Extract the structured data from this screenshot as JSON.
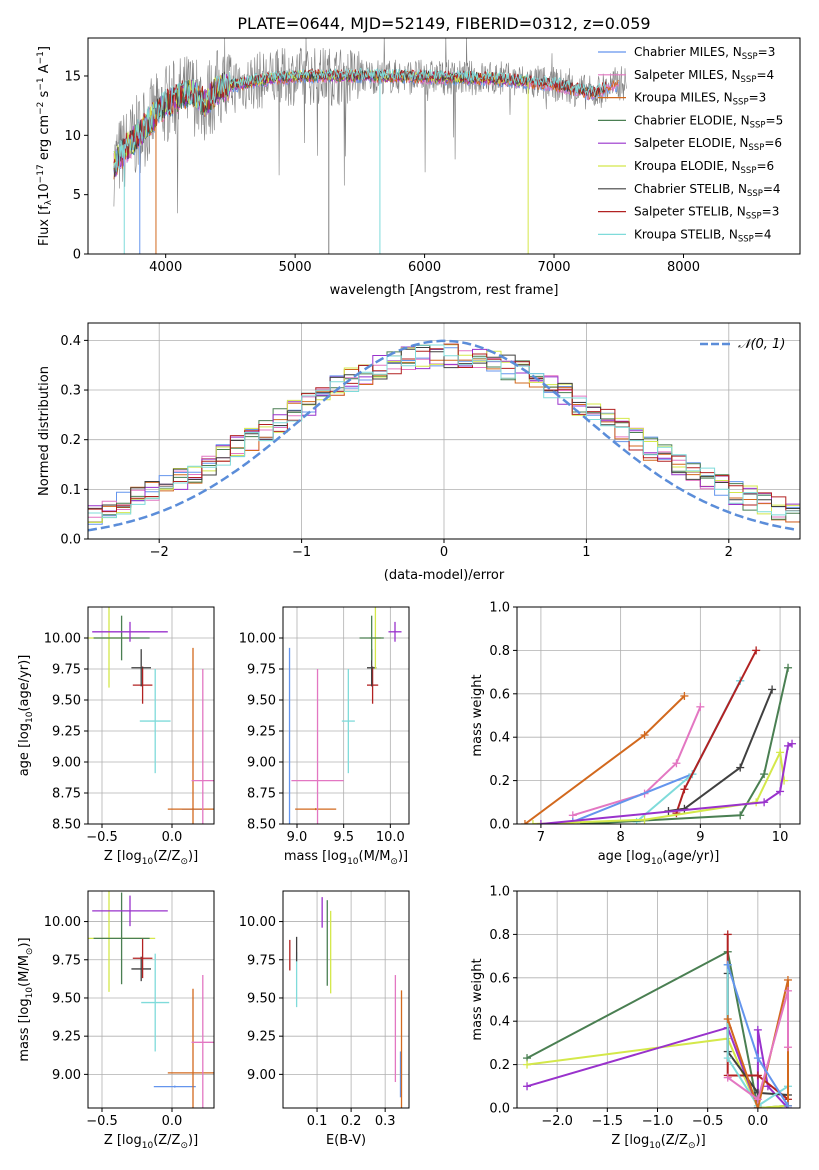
{
  "figure": {
    "title": "PLATE=0644, MJD=52149, FIBERID=0312, z=0.059"
  },
  "colors": {
    "Chabrier MILES": "#6495ed",
    "Salpeter MILES": "#e377c2",
    "Kroupa MILES": "#d2691e",
    "Chabrier ELODIE": "#4a7f52",
    "Salpeter ELODIE": "#9932cc",
    "Kroupa ELODIE": "#d4e84a",
    "Chabrier STELIB": "#404040",
    "Salpeter STELIB": "#b22222",
    "Kroupa STELIB": "#7fdbda",
    "data": "#808080",
    "gauss": "#5b8dd9"
  },
  "chart_data": [
    {
      "id": "spectrum",
      "type": "line",
      "title": "PLATE=0644, MJD=52149, FIBERID=0312, z=0.059",
      "xlabel": "wavelength [Angstrom, rest frame]",
      "ylabel": "Flux [f_λ10^-17 erg cm^-2 s^-1 A^-1]",
      "xlim": [
        3400,
        8900
      ],
      "ylim": [
        0,
        18.2
      ],
      "xticks": [
        4000,
        5000,
        6000,
        7000,
        8000
      ],
      "yticks": [
        0,
        5,
        10,
        15
      ],
      "grid": false,
      "legend_position": "upper right",
      "legend": [
        {
          "prefix": "Chabrier MILES, N",
          "sub": "SSP",
          "suffix": "=3"
        },
        {
          "prefix": "Salpeter MILES, N",
          "sub": "SSP",
          "suffix": "=4"
        },
        {
          "prefix": "Kroupa MILES, N",
          "sub": "SSP",
          "suffix": "=3"
        },
        {
          "prefix": "Chabrier ELODIE, N",
          "sub": "SSP",
          "suffix": "=5"
        },
        {
          "prefix": "Salpeter ELODIE, N",
          "sub": "SSP",
          "suffix": "=6"
        },
        {
          "prefix": "Kroupa ELODIE, N",
          "sub": "SSP",
          "suffix": "=6"
        },
        {
          "prefix": "Chabrier STELIB, N",
          "sub": "SSP",
          "suffix": "=4"
        },
        {
          "prefix": "Salpeter STELIB, N",
          "sub": "SSP",
          "suffix": "=3"
        },
        {
          "prefix": "Kroupa STELIB, N",
          "sub": "SSP",
          "suffix": "=4"
        }
      ],
      "continuum_x": [
        3600,
        3700,
        3800,
        3900,
        4000,
        4100,
        4200,
        4300,
        4400,
        4500,
        4700,
        5000,
        5500,
        6000,
        6500,
        7000,
        7300,
        7500,
        7800,
        8000,
        8300,
        8500,
        8800
      ],
      "continuum_y": [
        7.5,
        9.0,
        10.2,
        11.5,
        12.6,
        13.2,
        13.6,
        12.7,
        13.9,
        14.2,
        14.6,
        15.0,
        15.0,
        14.9,
        14.8,
        14.3,
        13.5,
        14.4,
        14.2,
        13.9,
        13.4,
        13.0,
        12.6
      ]
    },
    {
      "id": "residuals",
      "type": "histogram",
      "xlabel": "(data-model)/error",
      "ylabel": "Normed distribution",
      "xlim": [
        -2.5,
        2.5
      ],
      "ylim": [
        0,
        0.435
      ],
      "xticks": [
        -2,
        -1,
        0,
        1,
        2
      ],
      "yticks": [
        0.0,
        0.1,
        0.2,
        0.3,
        0.4
      ],
      "grid": true,
      "legend_position": "upper right",
      "gauss_label": "𝒩(0, 1)",
      "bin_width": 0.1
    },
    {
      "id": "age-vs-z",
      "type": "errorbar",
      "xlabel_parts": [
        "Z [log",
        "10",
        "(Z/Z",
        "⊙",
        ")]"
      ],
      "ylabel_parts": [
        "age  [log",
        "10",
        "(age/yr)]"
      ],
      "xlim": [
        -0.6,
        0.3
      ],
      "ylim": [
        8.5,
        10.25
      ],
      "xticks": [
        -0.5,
        0.0
      ],
      "yticks": [
        8.5,
        8.75,
        9.0,
        9.25,
        9.5,
        9.75,
        10.0
      ],
      "grid": true,
      "points": [
        {
          "model": "Chabrier MILES",
          "x": 0.15,
          "xerr": 0.08,
          "y": 8.62,
          "yerr": 0.0
        },
        {
          "model": "Kroupa MILES",
          "x": 0.15,
          "xerr": 0.18,
          "y": 8.62,
          "yerr": 1.3
        },
        {
          "model": "Salpeter MILES",
          "x": 0.22,
          "xerr": 0.08,
          "y": 8.85,
          "yerr": 0.9
        },
        {
          "model": "Kroupa STELIB",
          "x": -0.12,
          "xerr": 0.11,
          "y": 9.33,
          "yerr": 0.42
        },
        {
          "model": "Salpeter STELIB",
          "x": -0.21,
          "xerr": 0.07,
          "y": 9.62,
          "yerr": 0.15
        },
        {
          "model": "Chabrier STELIB",
          "x": -0.22,
          "xerr": 0.07,
          "y": 9.76,
          "yerr": 0.15
        },
        {
          "model": "Kroupa ELODIE",
          "x": -0.45,
          "xerr": 0.16,
          "y": 10.0,
          "yerr": 0.4
        },
        {
          "model": "Chabrier ELODIE",
          "x": -0.36,
          "xerr": 0.2,
          "y": 10.0,
          "yerr": 0.18
        },
        {
          "model": "Salpeter ELODIE",
          "x": -0.3,
          "xerr": 0.27,
          "y": 10.05,
          "yerr": 0.08
        }
      ]
    },
    {
      "id": "age-vs-mass",
      "type": "errorbar",
      "xlabel_parts": [
        "mass [log",
        "10",
        "(M/M",
        "⊙",
        ")]"
      ],
      "xlim": [
        8.85,
        10.2
      ],
      "ylim": [
        8.5,
        10.25
      ],
      "xticks": [
        9.0,
        9.5,
        10.0
      ],
      "yticks": [
        8.5,
        8.75,
        9.0,
        9.25,
        9.5,
        9.75,
        10.0
      ],
      "grid": true,
      "points": [
        {
          "model": "Chabrier MILES",
          "x": 8.92,
          "xerr": 0.0,
          "y": 8.62,
          "yerr": 1.3
        },
        {
          "model": "Kroupa MILES",
          "x": 9.2,
          "xerr": 0.22,
          "y": 8.62,
          "yerr": 0.0
        },
        {
          "model": "Salpeter MILES",
          "x": 9.22,
          "xerr": 0.28,
          "y": 8.85,
          "yerr": 0.9
        },
        {
          "model": "Kroupa STELIB",
          "x": 9.55,
          "xerr": 0.07,
          "y": 9.33,
          "yerr": 0.42
        },
        {
          "model": "Salpeter STELIB",
          "x": 9.81,
          "xerr": 0.06,
          "y": 9.62,
          "yerr": 0.15
        },
        {
          "model": "Chabrier STELIB",
          "x": 9.8,
          "xerr": 0.05,
          "y": 9.76,
          "yerr": 0.15
        },
        {
          "model": "Kroupa ELODIE",
          "x": 9.84,
          "xerr": 0.06,
          "y": 10.0,
          "yerr": 0.25
        },
        {
          "model": "Chabrier ELODIE",
          "x": 9.8,
          "xerr": 0.13,
          "y": 10.0,
          "yerr": 0.18
        },
        {
          "model": "Salpeter ELODIE",
          "x": 10.05,
          "xerr": 0.07,
          "y": 10.05,
          "yerr": 0.08
        }
      ]
    },
    {
      "id": "mass-vs-z",
      "type": "errorbar",
      "xlabel_parts": [
        "Z [log",
        "10",
        "(Z/Z",
        "⊙",
        ")]"
      ],
      "ylabel_parts": [
        "mass [log",
        "10",
        "(M/M",
        "⊙",
        ")]"
      ],
      "xlim": [
        -0.6,
        0.3
      ],
      "ylim": [
        8.78,
        10.2
      ],
      "xticks": [
        -0.5,
        0.0
      ],
      "yticks": [
        9.0,
        9.25,
        9.5,
        9.75,
        10.0
      ],
      "grid": true,
      "points": [
        {
          "model": "Chabrier MILES",
          "x": 0.02,
          "xerr": 0.15,
          "y": 8.92,
          "yerr": 0.0
        },
        {
          "model": "Kroupa MILES",
          "x": 0.15,
          "xerr": 0.18,
          "y": 9.01,
          "yerr": 0.55
        },
        {
          "model": "Salpeter MILES",
          "x": 0.22,
          "xerr": 0.08,
          "y": 9.21,
          "yerr": 0.44
        },
        {
          "model": "Kroupa STELIB",
          "x": -0.12,
          "xerr": 0.1,
          "y": 9.47,
          "yerr": 0.32
        },
        {
          "model": "Chabrier STELIB",
          "x": -0.22,
          "xerr": 0.07,
          "y": 9.69,
          "yerr": 0.08
        },
        {
          "model": "Salpeter STELIB",
          "x": -0.21,
          "xerr": 0.07,
          "y": 9.76,
          "yerr": 0.13
        },
        {
          "model": "Kroupa ELODIE",
          "x": -0.45,
          "xerr": 0.33,
          "y": 9.89,
          "yerr": 0.35
        },
        {
          "model": "Chabrier ELODIE",
          "x": -0.36,
          "xerr": 0.2,
          "y": 9.89,
          "yerr": 0.3
        },
        {
          "model": "Salpeter ELODIE",
          "x": -0.3,
          "xerr": 0.27,
          "y": 10.07,
          "yerr": 0.1
        }
      ]
    },
    {
      "id": "mass-vs-ebv",
      "type": "errorbar",
      "xlabel": "E(B-V)",
      "xlim": [
        0.0,
        0.37
      ],
      "ylim": [
        8.78,
        10.2
      ],
      "xticks": [
        0.1,
        0.2,
        0.3
      ],
      "yticks": [
        9.0,
        9.25,
        9.5,
        9.75,
        10.0
      ],
      "grid": true,
      "points": [
        {
          "model": "Chabrier MILES",
          "x": 0.345,
          "xerr": 0.0,
          "y": 9.0,
          "yerr": 0.15
        },
        {
          "model": "Kroupa MILES",
          "x": 0.348,
          "xerr": 0.0,
          "y": 9.1,
          "yerr": 0.45
        },
        {
          "model": "Salpeter MILES",
          "x": 0.33,
          "xerr": 0.0,
          "y": 9.3,
          "yerr": 0.35
        },
        {
          "model": "Kroupa STELIB",
          "x": 0.04,
          "xerr": 0.0,
          "y": 9.62,
          "yerr": 0.18
        },
        {
          "model": "Salpeter STELIB",
          "x": 0.02,
          "xerr": 0.0,
          "y": 9.78,
          "yerr": 0.1
        },
        {
          "model": "Chabrier STELIB",
          "x": 0.04,
          "xerr": 0.0,
          "y": 9.82,
          "yerr": 0.08
        },
        {
          "model": "Kroupa ELODIE",
          "x": 0.14,
          "xerr": 0.0,
          "y": 9.8,
          "yerr": 0.27
        },
        {
          "model": "Chabrier ELODIE",
          "x": 0.13,
          "xerr": 0.0,
          "y": 9.86,
          "yerr": 0.28
        },
        {
          "model": "Salpeter ELODIE",
          "x": 0.115,
          "xerr": 0.0,
          "y": 10.06,
          "yerr": 0.1
        }
      ]
    },
    {
      "id": "weight-vs-age",
      "type": "line",
      "xlabel_parts": [
        "age  [log",
        "10",
        "(age/yr)]"
      ],
      "ylabel": "mass weight",
      "xlim": [
        6.7,
        10.25
      ],
      "ylim": [
        0,
        1.0
      ],
      "xticks": [
        7,
        8,
        9,
        10
      ],
      "yticks": [
        0.0,
        0.2,
        0.4,
        0.6,
        0.8,
        1.0
      ],
      "grid": true,
      "series": [
        {
          "model": "Kroupa MILES",
          "x": [
            6.8,
            8.3,
            8.8
          ],
          "y": [
            0.0,
            0.41,
            0.59
          ]
        },
        {
          "model": "Salpeter MILES",
          "x": [
            7.4,
            8.3,
            8.7,
            9.0
          ],
          "y": [
            0.04,
            0.14,
            0.28,
            0.54
          ]
        },
        {
          "model": "Chabrier MILES",
          "x": [
            7.4,
            8.9,
            9.5
          ],
          "y": [
            0.01,
            0.23,
            0.66
          ]
        },
        {
          "model": "Kroupa STELIB",
          "x": [
            8.2,
            8.9,
            9.5
          ],
          "y": [
            0.01,
            0.23,
            0.66
          ]
        },
        {
          "model": "Salpeter STELIB",
          "x": [
            8.7,
            8.8,
            9.7
          ],
          "y": [
            0.05,
            0.16,
            0.8
          ]
        },
        {
          "model": "Chabrier STELIB",
          "x": [
            8.6,
            8.8,
            9.5,
            9.9
          ],
          "y": [
            0.06,
            0.07,
            0.26,
            0.62
          ]
        },
        {
          "model": "Chabrier ELODIE",
          "x": [
            7.5,
            9.5,
            9.8,
            10.1
          ],
          "y": [
            0.0,
            0.04,
            0.23,
            0.72
          ]
        },
        {
          "model": "Kroupa ELODIE",
          "x": [
            6.9,
            8.3,
            9.7,
            10.0,
            10.05
          ],
          "y": [
            0.0,
            0.02,
            0.1,
            0.33,
            0.2
          ]
        },
        {
          "model": "Salpeter ELODIE",
          "x": [
            7.0,
            9.8,
            10.0,
            10.1,
            10.15
          ],
          "y": [
            0.0,
            0.1,
            0.15,
            0.36,
            0.37
          ]
        }
      ]
    },
    {
      "id": "weight-vs-z",
      "type": "line",
      "xlabel_parts": [
        "Z [log",
        "10",
        "(Z/Z",
        "⊙",
        ")]"
      ],
      "ylabel": "mass weight",
      "xlim": [
        -2.4,
        0.42
      ],
      "ylim": [
        0,
        1.0
      ],
      "xticks": [
        -2.0,
        -1.5,
        -1.0,
        -0.5,
        0.0
      ],
      "yticks": [
        0.0,
        0.2,
        0.4,
        0.6,
        0.8,
        1.0
      ],
      "grid": true,
      "series": [
        {
          "model": "Chabrier ELODIE",
          "x": [
            -2.3,
            -0.3,
            0.0,
            0.3
          ],
          "y": [
            0.23,
            0.72,
            0.0,
            0.01
          ]
        },
        {
          "model": "Kroupa ELODIE",
          "x": [
            -2.3,
            -0.3,
            0.0,
            0.3
          ],
          "y": [
            0.2,
            0.32,
            0.0,
            0.01
          ]
        },
        {
          "model": "Salpeter ELODIE",
          "x": [
            -2.3,
            -0.3,
            0.0,
            0.0,
            0.1,
            0.3
          ],
          "y": [
            0.1,
            0.37,
            0.0,
            0.36,
            0.1,
            0.0
          ]
        },
        {
          "model": "Salpeter STELIB",
          "x": [
            -0.3,
            -0.3,
            0.0,
            0.3
          ],
          "y": [
            0.8,
            0.15,
            0.15,
            0.04
          ]
        },
        {
          "model": "Chabrier STELIB",
          "x": [
            -0.3,
            -0.3,
            0.0,
            0.3
          ],
          "y": [
            0.62,
            0.26,
            0.07,
            0.06
          ]
        },
        {
          "model": "Kroupa STELIB",
          "x": [
            -0.3,
            -0.3,
            0.0,
            0.3
          ],
          "y": [
            0.66,
            0.23,
            0.01,
            0.1
          ]
        },
        {
          "model": "Kroupa MILES",
          "x": [
            -0.3,
            0.0,
            0.3,
            0.3
          ],
          "y": [
            0.41,
            0.0,
            0.59,
            0.01
          ]
        },
        {
          "model": "Salpeter MILES",
          "x": [
            -0.3,
            0.0,
            0.3,
            0.3
          ],
          "y": [
            0.14,
            0.04,
            0.54,
            0.28
          ]
        },
        {
          "model": "Chabrier MILES",
          "x": [
            -0.3,
            0.0,
            0.3
          ],
          "y": [
            0.66,
            0.23,
            0.01
          ]
        }
      ]
    }
  ]
}
